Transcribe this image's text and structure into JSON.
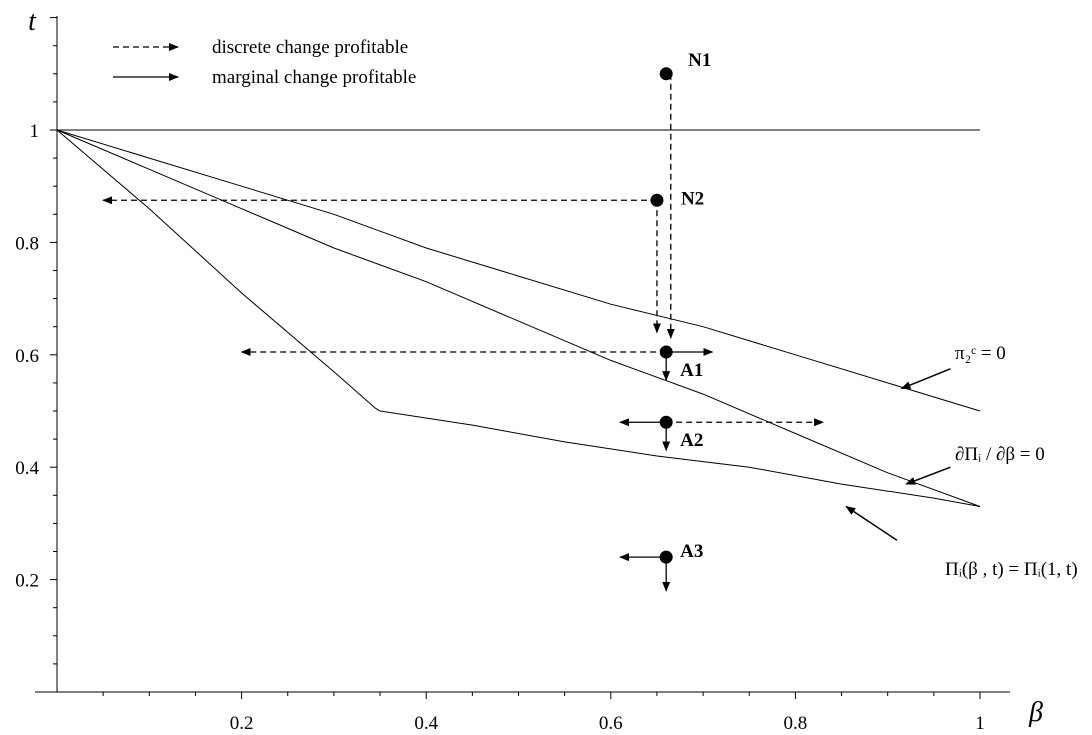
{
  "chart_data": {
    "type": "line",
    "title": "",
    "xlabel": "β",
    "ylabel": "t",
    "xlim": [
      0,
      1
    ],
    "ylim": [
      0,
      1.2
    ],
    "x_ticks": [
      {
        "value": 0.2,
        "label": "0.2"
      },
      {
        "value": 0.4,
        "label": "0.4"
      },
      {
        "value": 0.6,
        "label": "0.6"
      },
      {
        "value": 0.8,
        "label": "0.8"
      },
      {
        "value": 1.0,
        "label": "1"
      }
    ],
    "y_ticks": [
      {
        "value": 0.2,
        "label": "0.2"
      },
      {
        "value": 0.4,
        "label": "0.4"
      },
      {
        "value": 0.6,
        "label": "0.6"
      },
      {
        "value": 0.8,
        "label": "0.8"
      },
      {
        "value": 1.0,
        "label": "1"
      }
    ],
    "grid": false,
    "legend": {
      "placement": "top-left",
      "items": [
        {
          "label": "discrete change profitable",
          "style": "dashed"
        },
        {
          "label": "marginal change profitable",
          "style": "solid"
        }
      ]
    },
    "series": [
      {
        "points": [
          [
            0,
            1.0
          ],
          [
            1.0,
            1.0
          ]
        ]
      },
      {
        "points": [
          [
            0,
            1.0
          ],
          [
            0.1,
            0.95
          ],
          [
            0.2,
            0.9
          ],
          [
            0.3,
            0.85
          ],
          [
            0.4,
            0.79
          ],
          [
            0.5,
            0.74
          ],
          [
            0.6,
            0.69
          ],
          [
            0.7,
            0.65
          ],
          [
            0.8,
            0.6
          ],
          [
            0.9,
            0.55
          ],
          [
            1.0,
            0.5
          ]
        ]
      },
      {
        "points": [
          [
            0,
            1.0
          ],
          [
            0.1,
            0.93
          ],
          [
            0.2,
            0.86
          ],
          [
            0.3,
            0.79
          ],
          [
            0.4,
            0.73
          ],
          [
            0.5,
            0.66
          ],
          [
            0.6,
            0.59
          ],
          [
            0.7,
            0.53
          ],
          [
            0.8,
            0.46
          ],
          [
            0.9,
            0.39
          ],
          [
            1.0,
            0.33
          ]
        ]
      },
      {
        "points": [
          [
            0,
            1.0
          ],
          [
            0.1,
            0.86
          ],
          [
            0.2,
            0.71
          ],
          [
            0.3,
            0.57
          ],
          [
            0.345,
            0.505
          ],
          [
            0.35,
            0.5
          ],
          [
            0.45,
            0.475
          ],
          [
            0.55,
            0.445
          ],
          [
            0.65,
            0.42
          ],
          [
            0.75,
            0.4
          ],
          [
            0.85,
            0.37
          ],
          [
            0.95,
            0.345
          ],
          [
            1.0,
            0.33
          ]
        ]
      }
    ],
    "curve_labels": [
      {
        "id": "pi2",
        "text": "π₂ᶜ = 0",
        "arrow_from": [
          0.968,
          0.575
        ],
        "arrow_to": [
          0.915,
          0.54
        ]
      },
      {
        "id": "dPi",
        "text": "∂Πᵢ / ∂β = 0",
        "arrow_from": [
          0.968,
          0.4
        ],
        "arrow_to": [
          0.92,
          0.37
        ]
      },
      {
        "id": "Pi",
        "text": "Πᵢ(β , t) = Πᵢ(1, t)",
        "arrow_from": [
          0.91,
          0.27
        ],
        "arrow_to": [
          0.855,
          0.33
        ]
      }
    ],
    "points": [
      {
        "label": "N1",
        "x": 0.66,
        "y": 1.1
      },
      {
        "label": "N2",
        "x": 0.65,
        "y": 0.875
      },
      {
        "label": "A1",
        "x": 0.66,
        "y": 0.605
      },
      {
        "label": "A2",
        "x": 0.66,
        "y": 0.48
      },
      {
        "label": "A3",
        "x": 0.66,
        "y": 0.24
      }
    ],
    "arrows": [
      {
        "from": [
          0.665,
          1.1
        ],
        "to": [
          0.665,
          0.63
        ],
        "style": "dashed"
      },
      {
        "from": [
          0.65,
          0.875
        ],
        "to": [
          0.65,
          0.64
        ],
        "style": "dashed"
      },
      {
        "from": [
          0.65,
          0.875
        ],
        "to": [
          0.05,
          0.875
        ],
        "style": "dashed"
      },
      {
        "from": [
          0.66,
          0.605
        ],
        "to": [
          0.2,
          0.605
        ],
        "style": "dashed"
      },
      {
        "from": [
          0.66,
          0.605
        ],
        "to": [
          0.71,
          0.605
        ],
        "style": "solid"
      },
      {
        "from": [
          0.66,
          0.605
        ],
        "to": [
          0.66,
          0.555
        ],
        "style": "solid"
      },
      {
        "from": [
          0.66,
          0.48
        ],
        "to": [
          0.83,
          0.48
        ],
        "style": "dashed"
      },
      {
        "from": [
          0.66,
          0.48
        ],
        "to": [
          0.61,
          0.48
        ],
        "style": "solid"
      },
      {
        "from": [
          0.66,
          0.48
        ],
        "to": [
          0.66,
          0.43
        ],
        "style": "solid"
      },
      {
        "from": [
          0.66,
          0.24
        ],
        "to": [
          0.61,
          0.24
        ],
        "style": "solid"
      },
      {
        "from": [
          0.66,
          0.24
        ],
        "to": [
          0.66,
          0.18
        ],
        "style": "solid"
      }
    ]
  }
}
